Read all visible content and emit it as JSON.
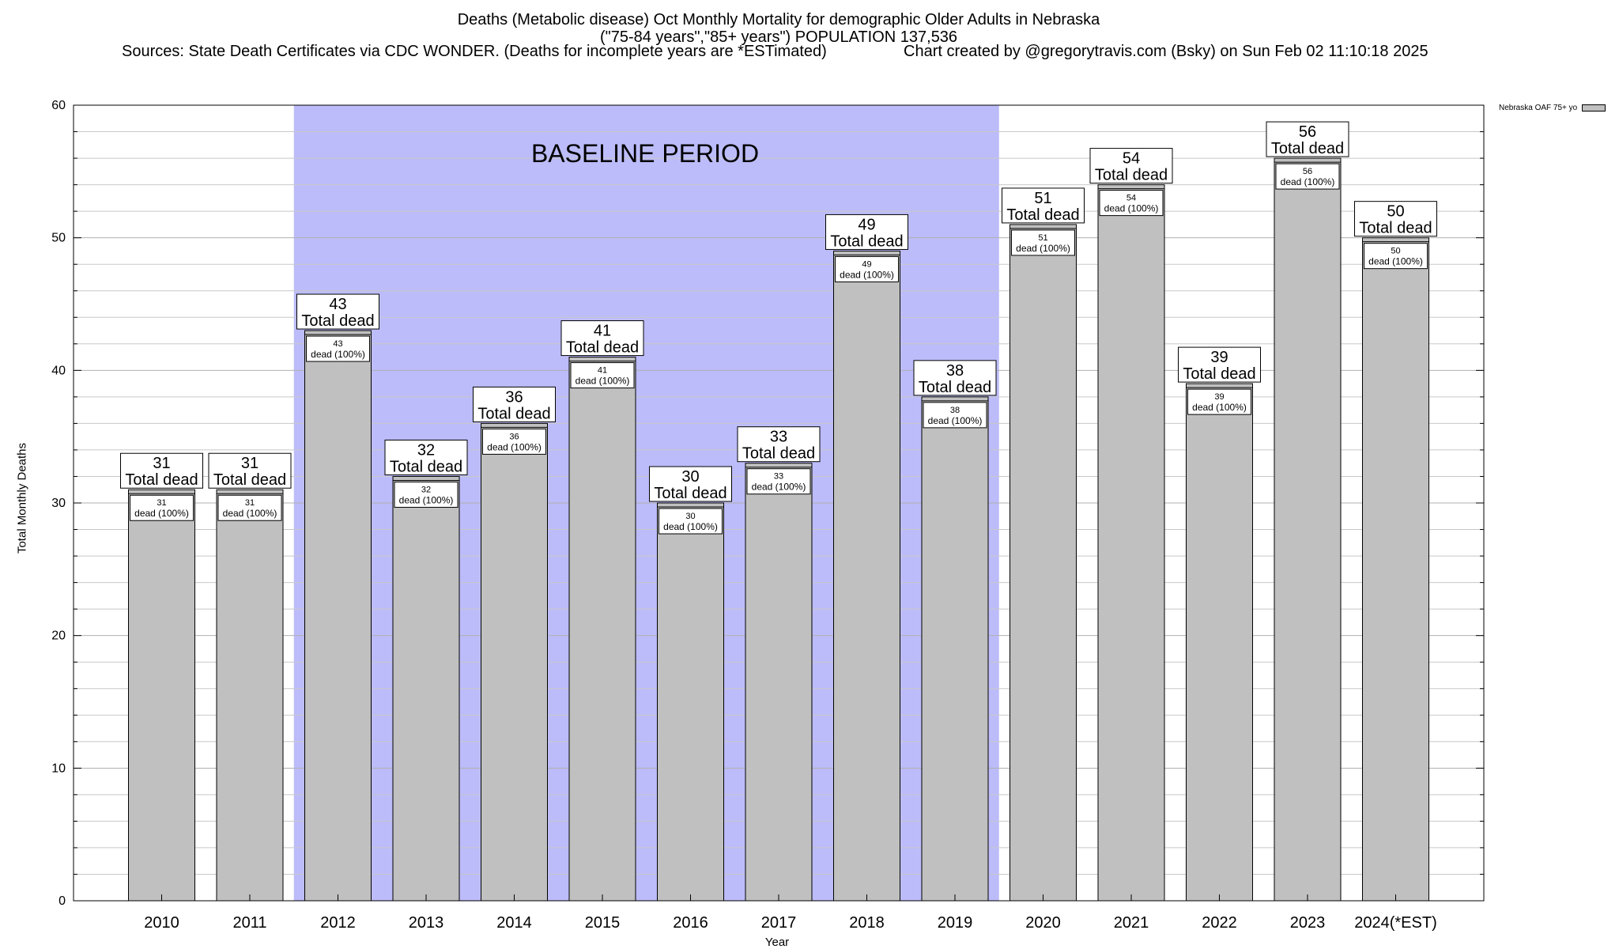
{
  "header": {
    "title_line1": "Deaths (Metabolic disease) Oct Monthly Mortality for demographic Older Adults in Nebraska",
    "title_line2": "(\"75-84 years\",\"85+ years\") POPULATION 137,536",
    "sources": "Sources: State Death Certificates via CDC WONDER. (Deaths for incomplete years are *ESTimated)",
    "credit": "Chart created by @gregorytravis.com (Bsky) on Sun Feb 02 11:10:18 2025"
  },
  "chart_data": {
    "type": "bar",
    "categories": [
      "2010",
      "2011",
      "2012",
      "2013",
      "2014",
      "2015",
      "2016",
      "2017",
      "2018",
      "2019",
      "2020",
      "2021",
      "2022",
      "2023",
      "2024(*EST)"
    ],
    "series": [
      {
        "name": "Nebraska OAF 75+ yo",
        "values": [
          31,
          31,
          43,
          32,
          36,
          41,
          30,
          33,
          49,
          38,
          51,
          54,
          39,
          56,
          50
        ],
        "color": "#c0c0c0"
      }
    ],
    "total_label": "Total dead",
    "inner_label": "dead (100%)",
    "baseline_label": "BASELINE PERIOD",
    "baseline_range": [
      "2012",
      "2019"
    ],
    "baseline_color": "#bcbcfa",
    "xlabel": "Year",
    "ylabel": "Total Monthly Deaths",
    "ylim": [
      0,
      60
    ],
    "yticks": [
      0,
      10,
      20,
      30,
      40,
      50,
      60
    ],
    "grid": true,
    "legend_position": "top-right"
  }
}
